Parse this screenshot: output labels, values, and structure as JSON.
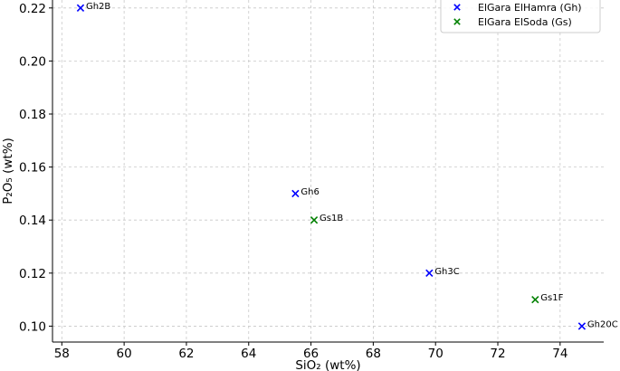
{
  "chart_data": {
    "type": "scatter",
    "title": "",
    "xlabel": "SiO₂ (wt%)",
    "ylabel": "P₂O₅ (wt%)",
    "xlim": [
      57.7,
      75.4
    ],
    "ylim": [
      0.094,
      0.223
    ],
    "xticks": [
      58,
      60,
      62,
      64,
      66,
      68,
      70,
      72,
      74
    ],
    "yticks": [
      0.1,
      0.12,
      0.14,
      0.16,
      0.18,
      0.2,
      0.22
    ],
    "xtick_labels": [
      "58",
      "60",
      "62",
      "64",
      "66",
      "68",
      "70",
      "72",
      "74"
    ],
    "ytick_labels": [
      "0.10",
      "0.12",
      "0.14",
      "0.16",
      "0.18",
      "0.20",
      "0.22"
    ],
    "grid": true,
    "legend_position": "top-right",
    "marker": "x",
    "series": [
      {
        "name": "ElGara ElHamra (Gh)",
        "color": "#0000ff",
        "points": [
          {
            "label": "Gh2B",
            "x": 58.6,
            "y": 0.22
          },
          {
            "label": "Gh6",
            "x": 65.5,
            "y": 0.15
          },
          {
            "label": "Gh3C",
            "x": 69.8,
            "y": 0.12
          },
          {
            "label": "Gh20C",
            "x": 74.7,
            "y": 0.1
          }
        ]
      },
      {
        "name": "ElGara ElSoda (Gs)",
        "color": "#008000",
        "points": [
          {
            "label": "Gs1B",
            "x": 66.1,
            "y": 0.14
          },
          {
            "label": "Gs1F",
            "x": 73.2,
            "y": 0.11
          }
        ]
      }
    ]
  }
}
